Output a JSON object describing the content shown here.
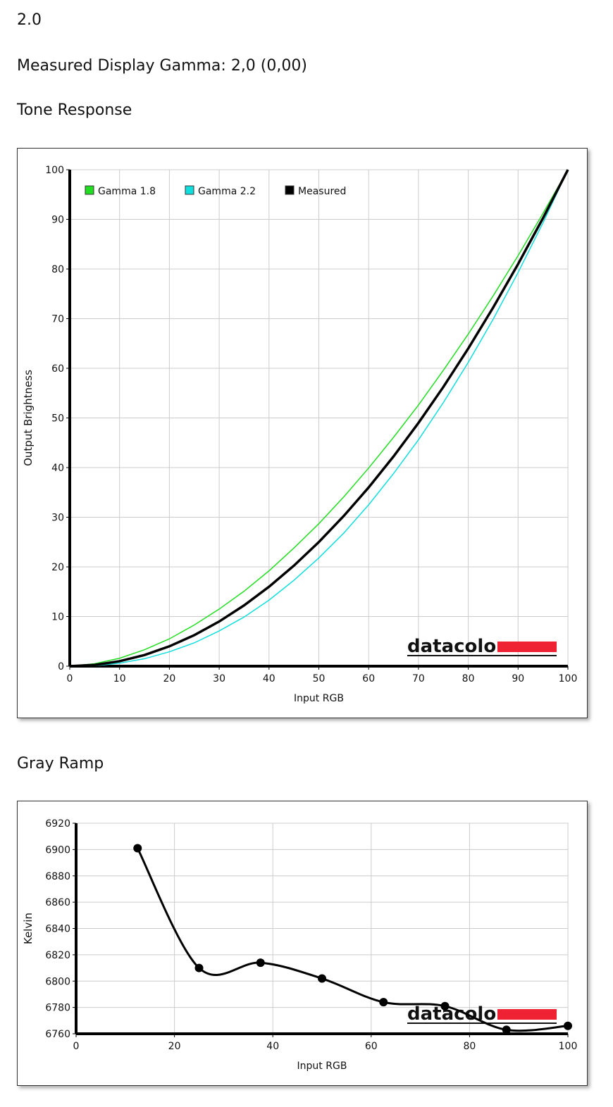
{
  "page": {
    "version": "2.0",
    "measured": "Measured Display Gamma: 2,0 (0,00)",
    "heading1": "Tone Response",
    "heading2": "Gray Ramp"
  },
  "chart_data": [
    {
      "type": "line",
      "watermark": "datacolor",
      "xlabel": "Input RGB",
      "ylabel": "Output Brightness",
      "x": [
        0,
        5,
        10,
        15,
        20,
        25,
        30,
        35,
        40,
        45,
        50,
        55,
        60,
        65,
        70,
        75,
        80,
        85,
        90,
        95,
        100
      ],
      "xlim": [
        0,
        100
      ],
      "xticks": [
        0,
        10,
        20,
        30,
        40,
        50,
        60,
        70,
        80,
        90,
        100
      ],
      "ylim": [
        0,
        100
      ],
      "yticks": [
        0,
        10,
        20,
        30,
        40,
        50,
        60,
        70,
        80,
        90,
        100
      ],
      "grid": true,
      "legend": "top-left",
      "series": [
        {
          "name": "Gamma 1.8",
          "color": "#22dd22",
          "width": 1.5,
          "values": [
            0,
            0.5,
            1.6,
            3.3,
            5.5,
            8.3,
            11.5,
            15.1,
            19.2,
            23.8,
            28.7,
            34.1,
            39.9,
            46.1,
            52.6,
            59.6,
            66.9,
            74.6,
            82.7,
            91.2,
            100
          ]
        },
        {
          "name": "Gamma 2.2",
          "color": "#11dddd",
          "width": 1.5,
          "values": [
            0,
            0.1,
            0.6,
            1.5,
            2.9,
            4.7,
            7.1,
            9.9,
            13.3,
            17.3,
            21.8,
            26.8,
            32.5,
            38.8,
            45.6,
            53.1,
            61.2,
            69.9,
            79.3,
            89.3,
            100
          ]
        },
        {
          "name": "Measured",
          "color": "#000000",
          "width": 3.5,
          "values": [
            0,
            0.25,
            1,
            2.25,
            4,
            6.25,
            9,
            12.25,
            16,
            20.25,
            25,
            30.25,
            36,
            42.25,
            49,
            56.25,
            64,
            72.25,
            81,
            90.25,
            100
          ]
        }
      ]
    },
    {
      "type": "line",
      "watermark": "datacolor",
      "xlabel": "Input RGB",
      "ylabel": "Kelvin",
      "markers": true,
      "smooth": true,
      "x": [
        12.5,
        25,
        37.5,
        50,
        62.5,
        75,
        87.5,
        100
      ],
      "xlim": [
        0,
        100
      ],
      "xticks": [
        0,
        20,
        40,
        60,
        80,
        100
      ],
      "ylim": [
        6760,
        6920
      ],
      "yticks": [
        6760,
        6780,
        6800,
        6820,
        6840,
        6860,
        6880,
        6900,
        6920
      ],
      "grid": true,
      "series": [
        {
          "color": "#000000",
          "width": 3,
          "values": [
            6901,
            6810,
            6814,
            6802,
            6784,
            6781,
            6763,
            6766
          ]
        }
      ]
    }
  ]
}
